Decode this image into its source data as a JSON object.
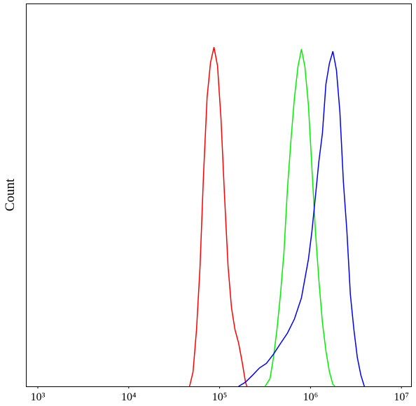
{
  "chart_data": {
    "type": "line",
    "ylabel": "Count",
    "xscale": "log",
    "xlim": [
      753,
      13000000
    ],
    "ylim": [
      0,
      100
    ],
    "xticks": [
      {
        "value": 1000,
        "label": "10³"
      },
      {
        "value": 10000,
        "label": "10⁴"
      },
      {
        "value": 100000,
        "label": "10⁵"
      },
      {
        "value": 1000000,
        "label": "10⁶"
      },
      {
        "value": 10000000,
        "label": "10⁷"
      }
    ],
    "series": [
      {
        "color": "#ff0000",
        "x": [
          46700,
          51000,
          55700,
          60900,
          66500,
          72800,
          79400,
          86700,
          94800,
          103600,
          113200,
          123700,
          135100,
          147600,
          161400,
          176200,
          192600,
          199500
        ],
        "values": [
          0,
          3.8,
          14.8,
          31.3,
          55.3,
          75.5,
          84.6,
          88.6,
          83.7,
          69.8,
          49.8,
          31.5,
          20.5,
          14.8,
          11.4,
          6.6,
          1.1,
          0
        ]
      },
      {
        "color": "#00ee00",
        "x": [
          316000,
          358000,
          391000,
          427000,
          467000,
          510000,
          557000,
          609000,
          665000,
          727000,
          794000,
          867000,
          948000,
          1036000,
          1132000,
          1236000,
          1351000,
          1476000,
          1614000,
          1762000,
          1858000
        ],
        "values": [
          0,
          2.0,
          7.5,
          14.8,
          24.0,
          35.0,
          51.5,
          64.3,
          75.3,
          83.5,
          88.1,
          83.5,
          73.4,
          57.0,
          40.5,
          27.7,
          16.7,
          9.3,
          3.8,
          0.5,
          0
        ]
      },
      {
        "color": "#0000ee",
        "x": [
          161400,
          192600,
          230000,
          274000,
          327000,
          391000,
          467000,
          557000,
          665000,
          794000,
          948000,
          1036000,
          1132000,
          1236000,
          1351000,
          1476000,
          1614000,
          1762000,
          1928000,
          2104000,
          2300000,
          2512000,
          2742000,
          3000000,
          3273000,
          3581000,
          3908000
        ],
        "values": [
          0,
          1.1,
          2.9,
          4.8,
          6.0,
          8.4,
          11.2,
          13.9,
          17.6,
          23.1,
          33.2,
          40.5,
          49.6,
          58.8,
          66.1,
          78.9,
          84.4,
          87.5,
          82.6,
          71.6,
          53.3,
          40.5,
          24.0,
          14.8,
          7.5,
          2.9,
          0
        ]
      }
    ]
  }
}
